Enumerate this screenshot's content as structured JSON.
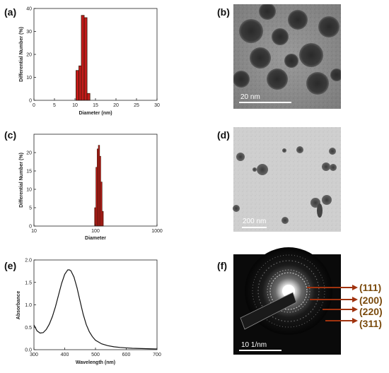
{
  "panels": {
    "a": {
      "label": "(a)"
    },
    "b": {
      "label": "(b)",
      "scale_bar": "20 nm"
    },
    "c": {
      "label": "(c)"
    },
    "d": {
      "label": "(d)",
      "scale_bar": "200 nm"
    },
    "e": {
      "label": "(e)"
    },
    "f": {
      "label": "(f)",
      "scale_bar": "10 1/nm",
      "planes": [
        "(111)",
        "(200)",
        "(220)",
        "(311)"
      ]
    }
  },
  "colors": {
    "bar_fill": "#c41a1a",
    "bar_edge": "#3a1a08",
    "hkl_text": "#7a4a0c",
    "arrow": "#a0330f"
  },
  "chart_data": [
    {
      "id": "a",
      "type": "bar",
      "xlabel": "Diameter (nm)",
      "ylabel": "Differential Number (%)",
      "xlim": [
        0,
        30
      ],
      "ylim": [
        0,
        40
      ],
      "xticks": [
        "0",
        "5",
        "10",
        "15",
        "20",
        "25",
        "30"
      ],
      "yticks": [
        "0",
        "10",
        "20",
        "30",
        "40"
      ],
      "bar_width": 0.7,
      "x": [
        10.6,
        11.3,
        11.9,
        12.6,
        13.3
      ],
      "values": [
        13,
        15,
        37,
        36,
        3
      ],
      "grid": false
    },
    {
      "id": "c",
      "type": "bar",
      "xscale": "log",
      "xlabel": "Diameter",
      "ylabel": "Differential Number (%)",
      "xlim": [
        10,
        1000
      ],
      "ylim": [
        0,
        25
      ],
      "xticks": [
        "10",
        "100",
        "1000"
      ],
      "yticks": [
        "0",
        "5",
        "10",
        "15",
        "20"
      ],
      "x": [
        99,
        104,
        109,
        114,
        119,
        125,
        131
      ],
      "values": [
        5,
        16,
        21,
        22,
        19,
        12,
        4
      ],
      "grid": false
    },
    {
      "id": "e",
      "type": "line",
      "xlabel": "Wavelength (nm)",
      "ylabel": "Absorbance",
      "xlim": [
        300,
        700
      ],
      "ylim": [
        0,
        2.0
      ],
      "xticks": [
        "300",
        "400",
        "500",
        "600",
        "700"
      ],
      "yticks": [
        "0.0",
        "0.5",
        "1.0",
        "1.5",
        "2.0"
      ],
      "series": [
        {
          "x": [
            300,
            310,
            320,
            330,
            340,
            350,
            360,
            370,
            380,
            390,
            400,
            410,
            415,
            420,
            430,
            440,
            450,
            460,
            470,
            480,
            490,
            500,
            520,
            540,
            560,
            580,
            600,
            620,
            650,
            680,
            700
          ],
          "values": [
            0.55,
            0.42,
            0.37,
            0.38,
            0.45,
            0.57,
            0.74,
            0.96,
            1.22,
            1.48,
            1.68,
            1.78,
            1.78,
            1.76,
            1.62,
            1.38,
            1.08,
            0.79,
            0.56,
            0.4,
            0.29,
            0.21,
            0.13,
            0.09,
            0.065,
            0.05,
            0.04,
            0.032,
            0.025,
            0.02,
            0.017
          ]
        }
      ],
      "grid": false
    }
  ]
}
